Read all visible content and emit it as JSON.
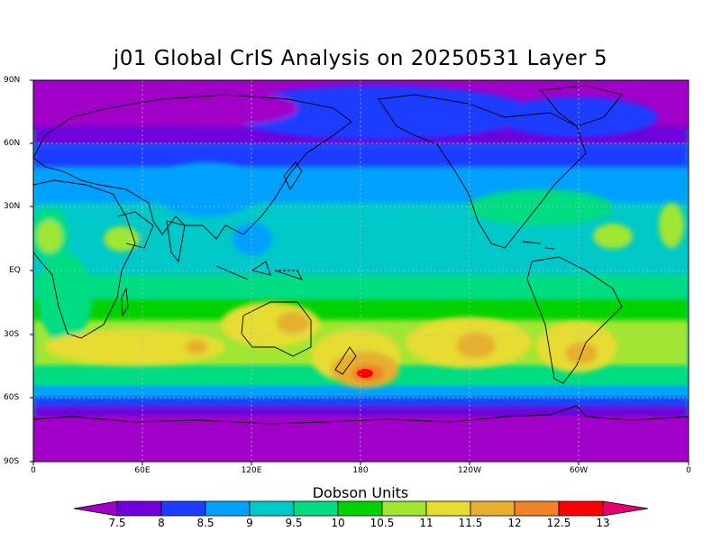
{
  "title": "j01 Global CrIS Analysis on 20250531 Layer 5",
  "lat_labels": [
    "90N",
    "60N",
    "30N",
    "EQ",
    "30S",
    "60S",
    "90S"
  ],
  "lon_labels": [
    "0",
    "60E",
    "120E",
    "180",
    "120W",
    "60W",
    "0"
  ],
  "colorbar": {
    "title": "Dobson Units",
    "labels": [
      "7.5",
      "8",
      "8.5",
      "9",
      "9.5",
      "10",
      "10.5",
      "11",
      "11.5",
      "12",
      "12.5",
      "13"
    ],
    "colors": [
      "#a000c8",
      "#7000dc",
      "#1e3cff",
      "#00a0ff",
      "#00c8c8",
      "#00dc82",
      "#00d200",
      "#a0e632",
      "#e6dc32",
      "#e6af2d",
      "#f08228",
      "#ff0000",
      "#e6006e"
    ]
  }
}
